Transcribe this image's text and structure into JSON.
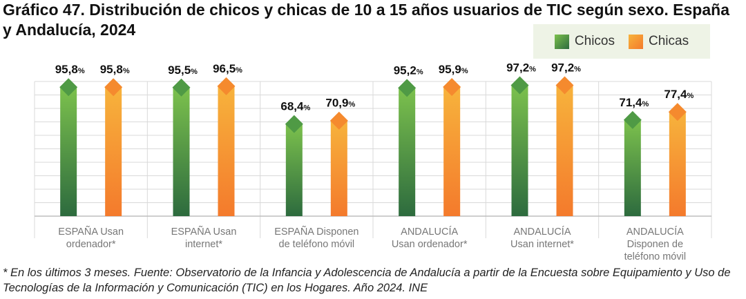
{
  "title": "Gráfico 47. Distribución de chicos y chicas de 10 a 15 años usuarios de TIC según sexo. España y Andalucía, 2024",
  "legend": {
    "chicos": "Chicos",
    "chicas": "Chicas"
  },
  "colors": {
    "chicos_top": "#7cc14d",
    "chicos_bottom": "#2d6b3e",
    "chicas_top": "#f7b33c",
    "chicas_bottom": "#f47a2c",
    "grid": "#d9d9d9"
  },
  "chart_data": {
    "type": "bar",
    "title": "Gráfico 47. Distribución de chicos y chicas de 10 a 15 años usuarios de TIC según sexo. España y Andalucía, 2024",
    "categories": [
      "ESPAÑA Usan ordenador*",
      "ESPAÑA Usan internet*",
      "ESPAÑA Disponen de teléfono móvil",
      "ANDALUCÍA Usan ordenador*",
      "ANDALUCÍA Usan internet*",
      "ANDALUCÍA Disponen de teléfono móvil"
    ],
    "category_lines": [
      [
        "ESPAÑA Usan",
        "ordenador*"
      ],
      [
        "ESPAÑA Usan",
        "internet*"
      ],
      [
        "ESPAÑA Disponen",
        "de teléfono móvil"
      ],
      [
        "ANDALUCÍA",
        "Usan ordenador*"
      ],
      [
        "ANDALUCÍA",
        "Usan internet*"
      ],
      [
        "ANDALUCÍA",
        "Disponen de",
        "teléfono móvil"
      ]
    ],
    "series": [
      {
        "name": "Chicos",
        "values": [
          95.8,
          95.5,
          68.4,
          95.2,
          97.2,
          71.4
        ],
        "labels": [
          "95,8",
          "95,5",
          "68,4",
          "95,2",
          "97,2",
          "71,4"
        ]
      },
      {
        "name": "Chicas",
        "values": [
          95.8,
          96.5,
          70.9,
          95.9,
          97.2,
          77.4
        ],
        "labels": [
          "95,8",
          "96,5",
          "70,9",
          "95,9",
          "97,2",
          "77,4"
        ]
      }
    ],
    "unit": "%",
    "ylim": [
      0,
      100
    ],
    "grid": true,
    "legend_position": "top-right"
  },
  "footnote": "* En los últimos 3 meses. Fuente: Observatorio de la Infancia y Adolescencia de Andalucía a partir de la Encuesta sobre Equipamiento y Uso de Tecnologías de la Información y Comunicación (TIC) en los Hogares. Año 2024. INE"
}
